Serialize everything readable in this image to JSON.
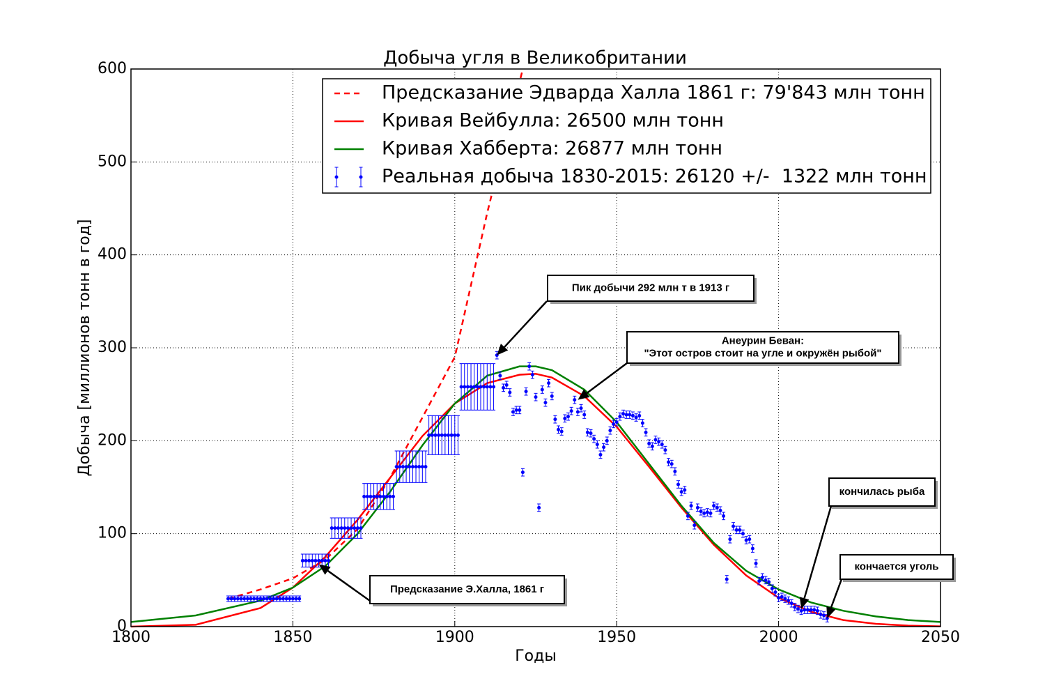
{
  "chart_data": {
    "type": "line",
    "title": "Добыча угля в Великобритании",
    "xlabel": "Годы",
    "ylabel": "Добыча [миллионов тонн в год]",
    "xlim": [
      1800,
      2050
    ],
    "xticks": [
      1800,
      1850,
      1900,
      1950,
      2000,
      2050
    ],
    "ylim": [
      0,
      600
    ],
    "yticks": [
      0,
      100,
      200,
      300,
      400,
      500,
      600
    ],
    "grid": true,
    "legend": "upper right",
    "series": [
      {
        "name": "Предсказание Эдварда Халла 1861 г: 79'843 млн тонн",
        "color": "#ff0000",
        "style": "dashed",
        "x": [
          1830,
          1840,
          1850,
          1860,
          1870,
          1880,
          1890,
          1900,
          1910,
          1921
        ],
        "values": [
          30,
          40,
          52,
          72,
          105,
          160,
          225,
          290,
          445,
          600
        ]
      },
      {
        "name": "Кривая Вейбулла: 26500 млн тонн",
        "color": "#ff0000",
        "style": "solid",
        "x": [
          1800,
          1820,
          1840,
          1850,
          1860,
          1870,
          1880,
          1890,
          1900,
          1910,
          1920,
          1925,
          1930,
          1940,
          1950,
          1960,
          1970,
          1980,
          1990,
          2000,
          2010,
          2020,
          2030,
          2040,
          2050
        ],
        "values": [
          0,
          2,
          20,
          42,
          75,
          115,
          160,
          205,
          240,
          262,
          271,
          272,
          268,
          248,
          215,
          172,
          128,
          88,
          55,
          31,
          16,
          7,
          3,
          1,
          0.3
        ]
      },
      {
        "name": "Кривая Хабберта: 26877 млн тонн",
        "color": "#008000",
        "style": "solid",
        "x": [
          1800,
          1820,
          1840,
          1850,
          1860,
          1870,
          1880,
          1890,
          1900,
          1910,
          1920,
          1925,
          1930,
          1940,
          1950,
          1960,
          1970,
          1980,
          1990,
          2000,
          2010,
          2020,
          2030,
          2040,
          2050
        ],
        "values": [
          5,
          12,
          28,
          42,
          65,
          100,
          145,
          195,
          240,
          270,
          280,
          280,
          276,
          255,
          220,
          175,
          130,
          90,
          60,
          40,
          26,
          17,
          11,
          7,
          5
        ]
      },
      {
        "name": "Реальная добыча 1830-2015: 26120 +/-  1322 млн тонн",
        "color": "#0000ff",
        "style": "errorbar",
        "x": [
          1830,
          1831,
          1832,
          1833,
          1834,
          1835,
          1836,
          1837,
          1838,
          1839,
          1840,
          1841,
          1842,
          1843,
          1844,
          1845,
          1846,
          1847,
          1848,
          1849,
          1850,
          1851,
          1852,
          1853,
          1854,
          1855,
          1856,
          1857,
          1858,
          1859,
          1860,
          1861,
          1862,
          1863,
          1864,
          1865,
          1866,
          1867,
          1868,
          1869,
          1870,
          1871,
          1872,
          1873,
          1874,
          1875,
          1876,
          1877,
          1878,
          1879,
          1880,
          1881,
          1882,
          1883,
          1884,
          1885,
          1886,
          1887,
          1888,
          1889,
          1890,
          1891,
          1892,
          1893,
          1894,
          1895,
          1896,
          1897,
          1898,
          1899,
          1900,
          1901,
          1902,
          1903,
          1904,
          1905,
          1906,
          1907,
          1908,
          1909,
          1910,
          1911,
          1912,
          1913,
          1914,
          1915,
          1916,
          1917,
          1918,
          1919,
          1920,
          1921,
          1922,
          1923,
          1924,
          1925,
          1926,
          1927,
          1928,
          1929,
          1930,
          1931,
          1932,
          1933,
          1934,
          1935,
          1936,
          1937,
          1938,
          1939,
          1940,
          1941,
          1942,
          1943,
          1944,
          1945,
          1946,
          1947,
          1948,
          1949,
          1950,
          1951,
          1952,
          1953,
          1954,
          1955,
          1956,
          1957,
          1958,
          1959,
          1960,
          1961,
          1962,
          1963,
          1964,
          1965,
          1966,
          1967,
          1968,
          1969,
          1970,
          1971,
          1972,
          1973,
          1974,
          1975,
          1976,
          1977,
          1978,
          1979,
          1980,
          1981,
          1982,
          1983,
          1984,
          1985,
          1986,
          1987,
          1988,
          1989,
          1990,
          1991,
          1992,
          1993,
          1994,
          1995,
          1996,
          1997,
          1998,
          1999,
          2000,
          2001,
          2002,
          2003,
          2004,
          2005,
          2006,
          2007,
          2008,
          2009,
          2010,
          2011,
          2012,
          2013,
          2014,
          2015
        ],
        "values": [
          30,
          30,
          30,
          30,
          30,
          30,
          30,
          30,
          30,
          30,
          30,
          30,
          30,
          30,
          30,
          30,
          30,
          30,
          30,
          30,
          30,
          30,
          30,
          71,
          71,
          71,
          71,
          71,
          71,
          71,
          71,
          71,
          106,
          106,
          106,
          106,
          106,
          106,
          106,
          106,
          106,
          106,
          140,
          140,
          140,
          140,
          140,
          140,
          140,
          140,
          140,
          140,
          172,
          172,
          172,
          172,
          172,
          172,
          172,
          172,
          172,
          172,
          206,
          206,
          206,
          206,
          206,
          206,
          206,
          206,
          206,
          206,
          258,
          258,
          258,
          258,
          258,
          258,
          258,
          258,
          258,
          258,
          258,
          292,
          270,
          257,
          260,
          252,
          231,
          233,
          233,
          166,
          253,
          280,
          271,
          247,
          128,
          255,
          241,
          262,
          248,
          223,
          212,
          210,
          224,
          226,
          232,
          244,
          231,
          235,
          228,
          209,
          208,
          202,
          196,
          185,
          193,
          200,
          211,
          218,
          220,
          226,
          229,
          228,
          228,
          227,
          225,
          227,
          219,
          209,
          197,
          194,
          201,
          199,
          196,
          190,
          177,
          175,
          167,
          153,
          145,
          147,
          119,
          130,
          109,
          128,
          124,
          122,
          123,
          122,
          130,
          128,
          125,
          119,
          51,
          94,
          108,
          104,
          104,
          100,
          93,
          94,
          84,
          68,
          49,
          53,
          50,
          48,
          41,
          37,
          31,
          32,
          30,
          28,
          25,
          21,
          19,
          17,
          18,
          18,
          18,
          18,
          17,
          13,
          12,
          9
        ],
        "errors": [
          3,
          3,
          3,
          3,
          3,
          3,
          3,
          3,
          3,
          3,
          3,
          3,
          3,
          3,
          3,
          3,
          3,
          3,
          3,
          3,
          3,
          3,
          3,
          7,
          7,
          7,
          7,
          7,
          7,
          7,
          7,
          7,
          11,
          11,
          11,
          11,
          11,
          11,
          11,
          11,
          11,
          11,
          14,
          14,
          14,
          14,
          14,
          14,
          14,
          14,
          14,
          14,
          17,
          17,
          17,
          17,
          17,
          17,
          17,
          17,
          17,
          17,
          21,
          21,
          21,
          21,
          21,
          21,
          21,
          21,
          21,
          21,
          25,
          25,
          25,
          25,
          25,
          25,
          25,
          25,
          25,
          25,
          25,
          4,
          4,
          4,
          4,
          4,
          4,
          4,
          4,
          4,
          4,
          4,
          4,
          4,
          4,
          4,
          4,
          4,
          4,
          4,
          4,
          4,
          4,
          4,
          4,
          4,
          4,
          4,
          4,
          4,
          4,
          4,
          4,
          4,
          4,
          4,
          4,
          4,
          4,
          4,
          4,
          4,
          4,
          4,
          4,
          4,
          4,
          4,
          4,
          4,
          4,
          4,
          4,
          4,
          4,
          4,
          4,
          4,
          4,
          4,
          4,
          4,
          4,
          4,
          4,
          4,
          4,
          4,
          4,
          4,
          4,
          4,
          4,
          4,
          4,
          4,
          4,
          4,
          4,
          4,
          4,
          4,
          4,
          4,
          4,
          4,
          4,
          4,
          4,
          4,
          4,
          4,
          4,
          4,
          4,
          4,
          4,
          4,
          4,
          4,
          4,
          4,
          4,
          4
        ]
      }
    ],
    "annotations": [
      {
        "lines": [
          "Пик добычи 292 млн т в 1913 г"
        ],
        "xy": [
          1913,
          292
        ]
      },
      {
        "lines": [
          "Анеурин Беван:",
          "\"Этот остров стоит на угле и окружён рыбой\""
        ],
        "xy": [
          1938,
          244
        ]
      },
      {
        "lines": [
          "кончилась рыба"
        ],
        "xy": [
          2007,
          19
        ]
      },
      {
        "lines": [
          "кончается уголь"
        ],
        "xy": [
          2015,
          9
        ]
      },
      {
        "lines": [
          "Предсказание Э.Халла, 1861 г"
        ],
        "xy": [
          1858,
          67
        ]
      }
    ]
  }
}
